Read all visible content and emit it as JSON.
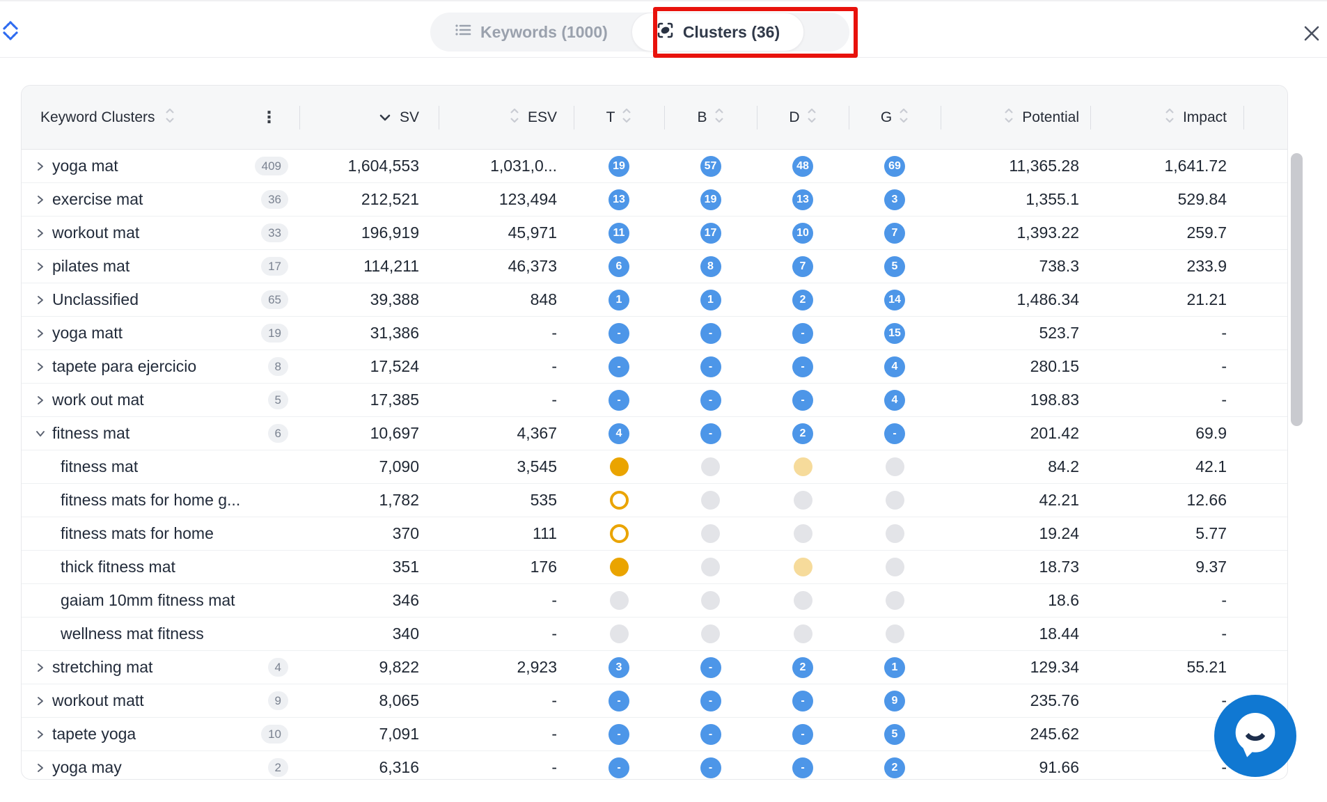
{
  "topbar": {
    "tabs": [
      {
        "label": "Keywords (1000)",
        "icon": "list-icon",
        "active": false
      },
      {
        "label": "Clusters (36)",
        "icon": "cluster-icon",
        "active": true,
        "annotated": true
      }
    ]
  },
  "annotation": {
    "color": "#E8120C"
  },
  "table": {
    "header": {
      "name": "Keyword Clusters",
      "menu_icon": "⋮",
      "sv": "SV",
      "esv": "ESV",
      "t": "T",
      "b": "B",
      "d": "D",
      "g": "G",
      "potential": "Potential",
      "impact": "Impact",
      "sorted_by": "SV descending"
    },
    "rows": [
      {
        "name": "yoga mat",
        "child": false,
        "expanded": false,
        "count": "409",
        "sv": "1,604,553",
        "esv": "1,031,0...",
        "t": "n:19",
        "b": "n:57",
        "d": "n:48",
        "g": "n:69",
        "potential": "11,365.28",
        "impact": "1,641.72"
      },
      {
        "name": "exercise mat",
        "child": false,
        "expanded": false,
        "count": "36",
        "sv": "212,521",
        "esv": "123,494",
        "t": "n:13",
        "b": "n:19",
        "d": "n:13",
        "g": "n:3",
        "potential": "1,355.1",
        "impact": "529.84"
      },
      {
        "name": "workout mat",
        "child": false,
        "expanded": false,
        "count": "33",
        "sv": "196,919",
        "esv": "45,971",
        "t": "n:11",
        "b": "n:17",
        "d": "n:10",
        "g": "n:7",
        "potential": "1,393.22",
        "impact": "259.7"
      },
      {
        "name": "pilates mat",
        "child": false,
        "expanded": false,
        "count": "17",
        "sv": "114,211",
        "esv": "46,373",
        "t": "n:6",
        "b": "n:8",
        "d": "n:7",
        "g": "n:5",
        "potential": "738.3",
        "impact": "233.9"
      },
      {
        "name": "Unclassified",
        "child": false,
        "expanded": false,
        "count": "65",
        "sv": "39,388",
        "esv": "848",
        "t": "n:1",
        "b": "n:1",
        "d": "n:2",
        "g": "n:14",
        "potential": "1,486.34",
        "impact": "21.21"
      },
      {
        "name": "yoga matt",
        "child": false,
        "expanded": false,
        "count": "19",
        "sv": "31,386",
        "esv": "-",
        "t": "n:-",
        "b": "n:-",
        "d": "n:-",
        "g": "n:15",
        "potential": "523.7",
        "impact": "-"
      },
      {
        "name": "tapete para ejercicio",
        "child": false,
        "expanded": false,
        "count": "8",
        "sv": "17,524",
        "esv": "-",
        "t": "n:-",
        "b": "n:-",
        "d": "n:-",
        "g": "n:4",
        "potential": "280.15",
        "impact": "-"
      },
      {
        "name": "work out mat",
        "child": false,
        "expanded": false,
        "count": "5",
        "sv": "17,385",
        "esv": "-",
        "t": "n:-",
        "b": "n:-",
        "d": "n:-",
        "g": "n:4",
        "potential": "198.83",
        "impact": "-"
      },
      {
        "name": "fitness mat",
        "child": false,
        "expanded": true,
        "count": "6",
        "sv": "10,697",
        "esv": "4,367",
        "t": "n:4",
        "b": "n:-",
        "d": "n:2",
        "g": "n:-",
        "potential": "201.42",
        "impact": "69.9"
      },
      {
        "name": "fitness mat",
        "child": true,
        "expanded": false,
        "count": null,
        "sv": "7,090",
        "esv": "3,545",
        "t": "o",
        "b": "g",
        "d": "p",
        "g": "g",
        "potential": "84.2",
        "impact": "42.1"
      },
      {
        "name": "fitness mats for home g...",
        "child": true,
        "expanded": false,
        "count": null,
        "sv": "1,782",
        "esv": "535",
        "t": "r",
        "b": "g",
        "d": "g",
        "g": "g",
        "potential": "42.21",
        "impact": "12.66"
      },
      {
        "name": "fitness mats for home",
        "child": true,
        "expanded": false,
        "count": null,
        "sv": "370",
        "esv": "111",
        "t": "r",
        "b": "g",
        "d": "g",
        "g": "g",
        "potential": "19.24",
        "impact": "5.77"
      },
      {
        "name": "thick fitness mat",
        "child": true,
        "expanded": false,
        "count": null,
        "sv": "351",
        "esv": "176",
        "t": "o",
        "b": "g",
        "d": "p",
        "g": "g",
        "potential": "18.73",
        "impact": "9.37"
      },
      {
        "name": "gaiam 10mm fitness mat",
        "child": true,
        "expanded": false,
        "count": null,
        "sv": "346",
        "esv": "-",
        "t": "g",
        "b": "g",
        "d": "g",
        "g": "g",
        "potential": "18.6",
        "impact": "-"
      },
      {
        "name": "wellness mat fitness",
        "child": true,
        "expanded": false,
        "count": null,
        "sv": "340",
        "esv": "-",
        "t": "g",
        "b": "g",
        "d": "g",
        "g": "g",
        "potential": "18.44",
        "impact": "-"
      },
      {
        "name": "stretching mat",
        "child": false,
        "expanded": false,
        "count": "4",
        "sv": "9,822",
        "esv": "2,923",
        "t": "n:3",
        "b": "n:-",
        "d": "n:2",
        "g": "n:1",
        "potential": "129.34",
        "impact": "55.21"
      },
      {
        "name": "workout matt",
        "child": false,
        "expanded": false,
        "count": "9",
        "sv": "8,065",
        "esv": "-",
        "t": "n:-",
        "b": "n:-",
        "d": "n:-",
        "g": "n:9",
        "potential": "235.76",
        "impact": "-"
      },
      {
        "name": "tapete yoga",
        "child": false,
        "expanded": false,
        "count": "10",
        "sv": "7,091",
        "esv": "-",
        "t": "n:-",
        "b": "n:-",
        "d": "n:-",
        "g": "n:5",
        "potential": "245.62",
        "impact": "-"
      },
      {
        "name": "yoga may",
        "child": false,
        "expanded": false,
        "count": "2",
        "sv": "6,316",
        "esv": "-",
        "t": "n:-",
        "b": "n:-",
        "d": "n:-",
        "g": "n:2",
        "potential": "91.66",
        "impact": "-"
      }
    ]
  },
  "colors": {
    "badge_blue": "#4D96E8",
    "mark_orange": "#EAA400",
    "mark_pale_orange": "#F6DB9B",
    "mark_gray": "#E3E4E8",
    "accent_blue": "#2E6BF0",
    "chat_blue": "#1078D2",
    "annotation_red": "#E8120C"
  }
}
